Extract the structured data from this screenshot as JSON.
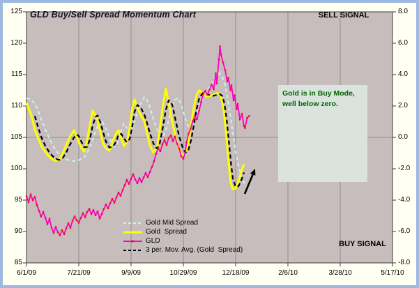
{
  "window": {
    "background_color": "#fffff2",
    "border_color": "#9db9e2"
  },
  "title": "GLD Buy/Sell Spread Momentum Chart",
  "signals": {
    "sell": "SELL SIGNAL",
    "buy": "BUY SIGNAL"
  },
  "annotation": {
    "line1": "Gold is in Buy Mode,",
    "line2": "well below zero.",
    "text_color": "#006400",
    "box_color": "#dbe3df",
    "arrow": "black up-right arrow near 12/18/09 pointing at rebounding spread lines"
  },
  "chart_data": {
    "type": "line",
    "title": "GLD Buy/Sell Spread Momentum Chart",
    "plot_background": "#c7bdbd",
    "gridline_color": "#8e8e8e",
    "x_axis": {
      "tick_labels": [
        "6/1/09",
        "7/21/09",
        "9/9/09",
        "10/29/09",
        "12/18/09",
        "2/6/10",
        "3/28/10",
        "5/17/10"
      ],
      "days_span": 350,
      "vertical_gridlines": true
    },
    "left_axis": {
      "min": 85,
      "max": 125,
      "tick_labels": [
        "125",
        "120",
        "115",
        "110",
        "105",
        "100",
        "95",
        "90",
        "85"
      ]
    },
    "right_axis": {
      "min": -8,
      "max": 8,
      "tick_labels": [
        "8.0",
        "6.0",
        "4.0",
        "2.0",
        "0.0",
        "-2.0",
        "-4.0",
        "-6.0",
        "-8.0"
      ],
      "zero_gridline": true
    },
    "series": [
      {
        "name": "Gold Mid Spread",
        "axis": "right",
        "color": "#ccf2f4",
        "line_style": "dashed",
        "points": [
          [
            0,
            2.5
          ],
          [
            5,
            2.4
          ],
          [
            10,
            1.9
          ],
          [
            15,
            1.0
          ],
          [
            20,
            0.2
          ],
          [
            25,
            -0.5
          ],
          [
            30,
            -1.0
          ],
          [
            35,
            -1.3
          ],
          [
            40,
            -1.45
          ],
          [
            45,
            -1.5
          ],
          [
            50,
            -1.45
          ],
          [
            55,
            -1.3
          ],
          [
            58,
            -1.0
          ],
          [
            62,
            -0.4
          ],
          [
            66,
            0.4
          ],
          [
            70,
            1.0
          ],
          [
            72,
            1.1
          ],
          [
            75,
            0.7
          ],
          [
            78,
            0.2
          ],
          [
            81,
            -0.3
          ],
          [
            84,
            -0.6
          ],
          [
            87,
            -0.4
          ],
          [
            90,
            0.3
          ],
          [
            93,
            0.9
          ],
          [
            96,
            0.6
          ],
          [
            99,
            0.3
          ],
          [
            102,
            0.8
          ],
          [
            106,
            1.6
          ],
          [
            110,
            2.3
          ],
          [
            113,
            2.6
          ],
          [
            116,
            2.3
          ],
          [
            119,
            1.7
          ],
          [
            122,
            1.0
          ],
          [
            125,
            0.5
          ],
          [
            128,
            0.1
          ],
          [
            130,
            0.0
          ],
          [
            133,
            0.4
          ],
          [
            136,
            1.1
          ],
          [
            139,
            1.9
          ],
          [
            142,
            2.4
          ],
          [
            145,
            2.5
          ],
          [
            148,
            2.1
          ],
          [
            151,
            1.4
          ],
          [
            154,
            0.8
          ],
          [
            157,
            0.5
          ],
          [
            160,
            0.9
          ],
          [
            163,
            1.5
          ],
          [
            166,
            2.1
          ],
          [
            170,
            2.7
          ],
          [
            174,
            3.1
          ],
          [
            178,
            3.5
          ],
          [
            181,
            3.9
          ],
          [
            184,
            4.1
          ],
          [
            187,
            3.9
          ],
          [
            190,
            3.3
          ],
          [
            193,
            2.2
          ],
          [
            196,
            0.9
          ],
          [
            198,
            0.0
          ],
          [
            200,
            -0.9
          ],
          [
            203,
            -1.9
          ],
          [
            206,
            -2.6
          ],
          [
            208,
            -2.9
          ],
          [
            209,
            -2.8
          ]
        ]
      },
      {
        "name": "Gold  Spread",
        "axis": "right",
        "color": "#ffff00",
        "line_style": "solid",
        "points": [
          [
            0,
            2.2
          ],
          [
            4.7,
            1.4
          ],
          [
            8,
            0.5
          ],
          [
            11.3,
            -0.1
          ],
          [
            14.7,
            -0.6
          ],
          [
            18,
            -0.9
          ],
          [
            21.3,
            -1.2
          ],
          [
            24.7,
            -1.4
          ],
          [
            28,
            -1.5
          ],
          [
            31.3,
            -1.4
          ],
          [
            34.7,
            -1.0
          ],
          [
            38,
            -0.5
          ],
          [
            41.3,
            0.0
          ],
          [
            45.3,
            0.45
          ],
          [
            48,
            0.1
          ],
          [
            50,
            -0.3
          ],
          [
            52.7,
            -0.7
          ],
          [
            55.3,
            -0.9
          ],
          [
            58,
            -0.2
          ],
          [
            60.7,
            0.8
          ],
          [
            63.3,
            1.7
          ],
          [
            66,
            1.4
          ],
          [
            68,
            1.1
          ],
          [
            70.7,
            0.3
          ],
          [
            73.3,
            -0.4
          ],
          [
            76,
            -0.7
          ],
          [
            79.3,
            -0.85
          ],
          [
            82.7,
            -0.2
          ],
          [
            86,
            0.3
          ],
          [
            88,
            0.45
          ],
          [
            90.7,
            -0.1
          ],
          [
            93.3,
            -0.55
          ],
          [
            96,
            -0.3
          ],
          [
            98.7,
            0.6
          ],
          [
            101.3,
            1.9
          ],
          [
            103.3,
            2.4
          ],
          [
            106,
            1.9
          ],
          [
            109.3,
            1.4
          ],
          [
            112.7,
            1.05
          ],
          [
            115.3,
            0.3
          ],
          [
            118,
            -0.5
          ],
          [
            121.3,
            -0.95
          ],
          [
            124.7,
            -0.7
          ],
          [
            127.3,
            0.4
          ],
          [
            130,
            1.8
          ],
          [
            133.3,
            3.1
          ],
          [
            136,
            2.2
          ],
          [
            139.3,
            1.0
          ],
          [
            142.7,
            0.0
          ],
          [
            146,
            -0.8
          ],
          [
            149.3,
            -1.15
          ],
          [
            152,
            -1.0
          ],
          [
            154.7,
            -0.4
          ],
          [
            157.3,
            0.8
          ],
          [
            160,
            1.9
          ],
          [
            162.7,
            2.7
          ],
          [
            165.3,
            3.0
          ],
          [
            168.7,
            2.8
          ],
          [
            172,
            2.6
          ],
          [
            175.3,
            2.65
          ],
          [
            178.7,
            2.7
          ],
          [
            182,
            2.8
          ],
          [
            184.7,
            2.8
          ],
          [
            187.3,
            2.3
          ],
          [
            189.3,
            1.3
          ],
          [
            191.3,
            0.0
          ],
          [
            193.3,
            -1.6
          ],
          [
            195.3,
            -2.9
          ],
          [
            197.3,
            -3.3
          ],
          [
            200,
            -3.25
          ],
          [
            202.7,
            -2.8
          ],
          [
            205.3,
            -2.2
          ],
          [
            208,
            -1.7
          ]
        ]
      },
      {
        "name": "GLD",
        "axis": "left",
        "color": "#ff00cc",
        "marker_color": "#ee1111",
        "line_style": "solid",
        "points": [
          [
            0,
            95.6
          ],
          [
            2,
            94.7
          ],
          [
            4,
            95.9
          ],
          [
            6,
            95.0
          ],
          [
            8,
            95.5
          ],
          [
            10,
            94.2
          ],
          [
            12,
            93.3
          ],
          [
            14,
            92.4
          ],
          [
            16,
            93.1
          ],
          [
            18,
            92.2
          ],
          [
            20,
            91.2
          ],
          [
            22,
            92.0
          ],
          [
            24,
            90.6
          ],
          [
            26,
            89.8
          ],
          [
            28,
            90.7
          ],
          [
            30,
            89.9
          ],
          [
            32,
            89.4
          ],
          [
            34,
            90.2
          ],
          [
            36,
            89.6
          ],
          [
            38,
            90.5
          ],
          [
            40,
            91.3
          ],
          [
            42,
            90.6
          ],
          [
            44,
            91.7
          ],
          [
            46,
            92.4
          ],
          [
            48,
            91.8
          ],
          [
            50,
            91.4
          ],
          [
            52,
            92.2
          ],
          [
            54,
            92.9
          ],
          [
            56,
            92.3
          ],
          [
            58,
            93.1
          ],
          [
            60,
            93.6
          ],
          [
            62,
            92.8
          ],
          [
            64,
            93.4
          ],
          [
            66,
            92.6
          ],
          [
            68,
            93.2
          ],
          [
            70,
            92.1
          ],
          [
            72,
            92.8
          ],
          [
            74,
            93.6
          ],
          [
            76,
            94.3
          ],
          [
            78,
            93.7
          ],
          [
            80,
            94.5
          ],
          [
            82,
            95.2
          ],
          [
            84,
            94.6
          ],
          [
            86,
            95.4
          ],
          [
            88,
            96.2
          ],
          [
            90,
            95.7
          ],
          [
            92,
            96.6
          ],
          [
            94,
            97.4
          ],
          [
            96,
            98.2
          ],
          [
            98,
            97.6
          ],
          [
            100,
            98.4
          ],
          [
            102,
            99.1
          ],
          [
            104,
            98.3
          ],
          [
            106,
            97.7
          ],
          [
            108,
            98.5
          ],
          [
            110,
            97.9
          ],
          [
            112,
            98.6
          ],
          [
            114,
            99.3
          ],
          [
            116,
            98.7
          ],
          [
            118,
            99.5
          ],
          [
            120,
            100.3
          ],
          [
            122,
            101.2
          ],
          [
            124,
            102.4
          ],
          [
            126,
            103.3
          ],
          [
            128,
            102.8
          ],
          [
            130,
            103.9
          ],
          [
            132,
            104.6
          ],
          [
            134,
            103.8
          ],
          [
            136,
            104.9
          ],
          [
            138,
            105.3
          ],
          [
            140,
            104.4
          ],
          [
            142,
            105.1
          ],
          [
            144,
            104.0
          ],
          [
            146,
            103.2
          ],
          [
            148,
            102.0
          ],
          [
            150,
            101.6
          ],
          [
            152,
            102.8
          ],
          [
            153,
            104.2
          ],
          [
            155,
            105.6
          ],
          [
            157,
            106.4
          ],
          [
            159,
            107.6
          ],
          [
            161,
            108.4
          ],
          [
            163,
            107.9
          ],
          [
            165,
            109.2
          ],
          [
            167,
            110.6
          ],
          [
            169,
            111.9
          ],
          [
            171,
            112.4
          ],
          [
            173,
            111.8
          ],
          [
            175,
            112.6
          ],
          [
            177,
            113.4
          ],
          [
            179,
            112.7
          ],
          [
            181,
            115.2
          ],
          [
            182,
            113.6
          ],
          [
            184,
            117.4
          ],
          [
            185,
            119.5
          ],
          [
            186,
            118.2
          ],
          [
            188,
            116.9
          ],
          [
            190,
            115.7
          ],
          [
            192,
            113.9
          ],
          [
            193,
            114.5
          ],
          [
            195,
            112.5
          ],
          [
            196,
            113.3
          ],
          [
            198,
            110.9
          ],
          [
            199,
            111.7
          ],
          [
            201,
            109.5
          ],
          [
            202,
            110.3
          ],
          [
            204,
            107.9
          ],
          [
            206,
            108.7
          ],
          [
            208,
            106.8
          ],
          [
            209,
            106.5
          ],
          [
            211,
            108.1
          ],
          [
            213,
            108.4
          ]
        ]
      },
      {
        "name": "3 per. Mov. Avg. (Gold  Spread)",
        "axis": "right",
        "color": "#000000",
        "line_style": "dashed",
        "derived_from": "Gold  Spread",
        "derivation": "3-period trailing moving average"
      }
    ]
  }
}
